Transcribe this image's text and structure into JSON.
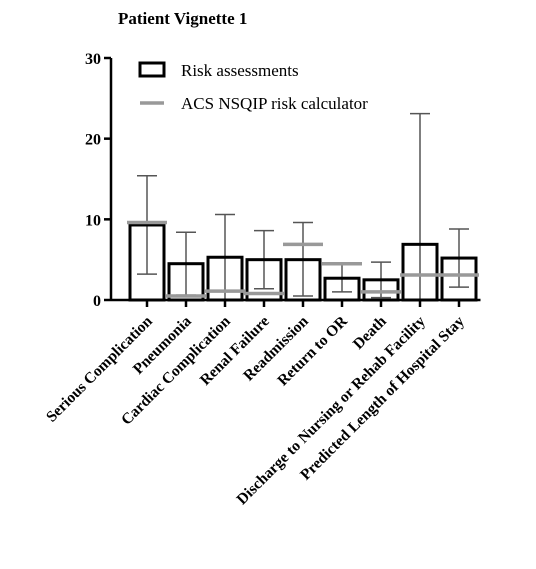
{
  "chart_data": {
    "type": "bar",
    "title": "Patient Vignette 1",
    "xlabel": "",
    "ylabel": "",
    "ylim": [
      0,
      30
    ],
    "yticks": [
      0,
      10,
      20,
      30
    ],
    "grid": false,
    "legend_position": "top-left",
    "categories": [
      "Serious Complication",
      "Pneumonia",
      "Cardiac Complication",
      "Renal Failure",
      "Readmission",
      "Return to OR",
      "Death",
      "Discharge to Nursing or Rehab Facility",
      "Predicted Length of Hospital Stay"
    ],
    "series": [
      {
        "name": "Risk assessments",
        "style": "bar",
        "values": [
          9.3,
          4.5,
          5.3,
          5.0,
          5.0,
          2.7,
          2.5,
          6.9,
          5.2
        ],
        "error_upper": [
          15.4,
          8.4,
          10.6,
          8.6,
          9.6,
          4.4,
          4.7,
          23.1,
          8.8
        ],
        "error_lower": [
          3.2,
          0.6,
          0.0,
          1.4,
          0.5,
          1.0,
          0.3,
          0.0,
          1.6
        ]
      },
      {
        "name": "ACS NSQIP risk calculator",
        "style": "marker-line",
        "values": [
          9.6,
          0.5,
          1.1,
          0.8,
          6.9,
          4.5,
          1.0,
          3.1,
          3.1
        ]
      }
    ],
    "colors": {
      "bar_stroke": "#000000",
      "bar_fill": "#ffffff",
      "nsqip_line": "#999999"
    }
  }
}
